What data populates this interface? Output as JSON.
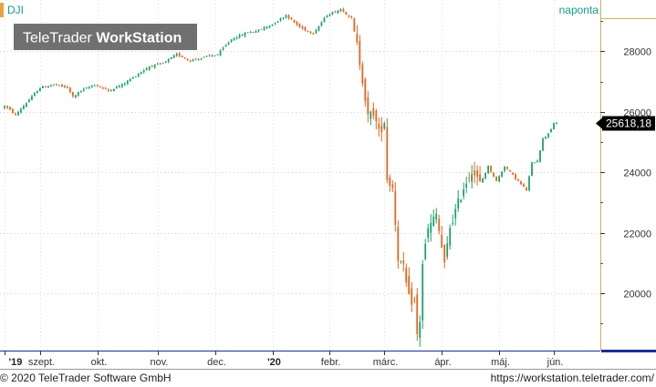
{
  "header": {
    "symbol": "DJI",
    "interval": "naponta",
    "brand_plain": "TeleTrader ",
    "brand_bold": "WorkStation"
  },
  "footer": {
    "copyright": "© 2020 TeleTrader Software GmbH",
    "url": "https://workstation.teletrader.com/"
  },
  "colors": {
    "up": "#1aa36b",
    "down": "#e8661e",
    "accent_teal": "#179c8e",
    "orange_marker": "#e8a33d",
    "axis_blue": "#1d2f8e",
    "price_box_bg": "#000000",
    "price_box_fg": "#ffffff",
    "logo_bg": "#707070"
  },
  "chart_data": {
    "type": "candlestick",
    "series_name": "DJI",
    "frequency": "naponta",
    "y_ticks": [
      20000,
      22000,
      24000,
      26000,
      28000
    ],
    "y_tick_labels": [
      "20000",
      "22000",
      "24000",
      "26000",
      "28000"
    ],
    "ylim": [
      18100,
      29700
    ],
    "last_price": 25618.18,
    "last_price_label": "25618,18",
    "x_labels": [
      {
        "label": "'19",
        "year": true
      },
      {
        "label": "szept.",
        "year": false
      },
      {
        "label": "okt.",
        "year": false
      },
      {
        "label": "nov.",
        "year": false
      },
      {
        "label": "dec.",
        "year": false
      },
      {
        "label": "'20",
        "year": true
      },
      {
        "label": "febr.",
        "year": false
      },
      {
        "label": "márc.",
        "year": false
      },
      {
        "label": "ápr.",
        "year": false
      },
      {
        "label": "máj.",
        "year": false
      },
      {
        "label": "jún.",
        "year": false
      }
    ],
    "close_anchors": [
      [
        0,
        26200
      ],
      [
        4,
        25900
      ],
      [
        8,
        26300
      ],
      [
        13,
        26800
      ],
      [
        18,
        26900
      ],
      [
        23,
        26800
      ],
      [
        25,
        26500
      ],
      [
        28,
        26700
      ],
      [
        33,
        26900
      ],
      [
        38,
        26700
      ],
      [
        43,
        26900
      ],
      [
        48,
        27200
      ],
      [
        53,
        27500
      ],
      [
        58,
        27600
      ],
      [
        63,
        27900
      ],
      [
        68,
        27700
      ],
      [
        73,
        27800
      ],
      [
        78,
        27900
      ],
      [
        83,
        28400
      ],
      [
        88,
        28600
      ],
      [
        93,
        28700
      ],
      [
        98,
        28900
      ],
      [
        103,
        29200
      ],
      [
        108,
        28800
      ],
      [
        113,
        28600
      ],
      [
        118,
        29200
      ],
      [
        123,
        29400
      ],
      [
        127,
        29100
      ],
      [
        129,
        28200
      ],
      [
        131,
        27100
      ],
      [
        133,
        25800
      ],
      [
        135,
        26000
      ],
      [
        137,
        25300
      ],
      [
        139,
        25700
      ],
      [
        140,
        23800
      ],
      [
        142,
        23500
      ],
      [
        144,
        21200
      ],
      [
        146,
        20800
      ],
      [
        148,
        19800
      ],
      [
        150,
        19700
      ],
      [
        151,
        18600
      ],
      [
        152,
        19100
      ],
      [
        153,
        21000
      ],
      [
        155,
        22100
      ],
      [
        158,
        22600
      ],
      [
        160,
        21500
      ],
      [
        161,
        20900
      ],
      [
        163,
        22200
      ],
      [
        165,
        22700
      ],
      [
        168,
        23500
      ],
      [
        171,
        24100
      ],
      [
        174,
        23600
      ],
      [
        177,
        24200
      ],
      [
        180,
        23700
      ],
      [
        183,
        24200
      ],
      [
        186,
        23900
      ],
      [
        189,
        23600
      ],
      [
        191,
        23400
      ],
      [
        193,
        24300
      ],
      [
        195,
        24400
      ],
      [
        197,
        25100
      ],
      [
        199,
        25300
      ],
      [
        201,
        25600
      ],
      [
        202,
        25618
      ]
    ],
    "n_bars": 203
  }
}
